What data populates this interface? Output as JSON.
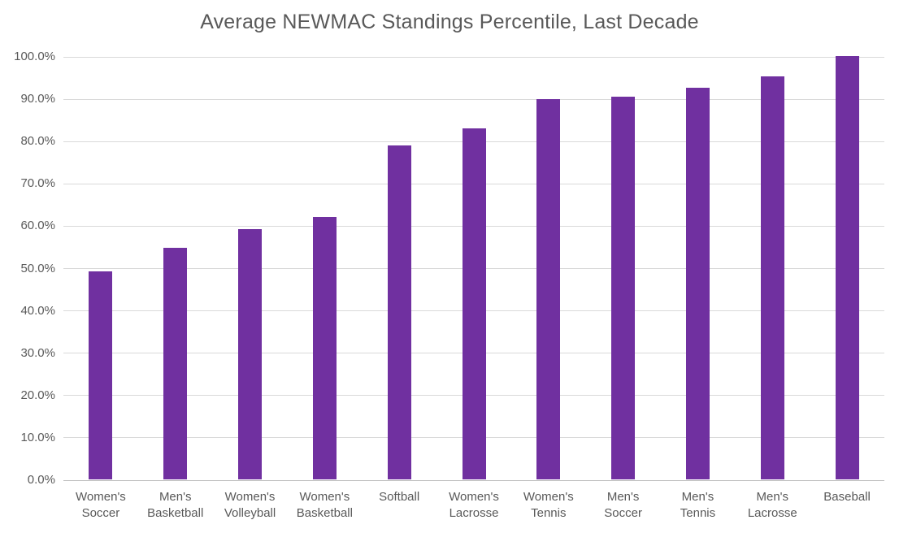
{
  "chart_data": {
    "type": "bar",
    "title": "Average NEWMAC Standings Percentile, Last Decade",
    "categories": [
      "Women's\nSoccer",
      "Men's\nBasketball",
      "Women's\nVolleyball",
      "Women's\nBasketball",
      "Softball",
      "Women's\nLacrosse",
      "Women's\nTennis",
      "Men's\nSoccer",
      "Men's\nTennis",
      "Men's\nLacrosse",
      "Baseball"
    ],
    "values": [
      49.1,
      54.7,
      59.1,
      62.0,
      78.9,
      83.0,
      89.8,
      90.4,
      92.5,
      95.2,
      100.0
    ],
    "xlabel": "",
    "ylabel": "",
    "ylim": [
      0,
      100
    ],
    "ytick_step": 10,
    "ytick_labels": [
      "0.0%",
      "10.0%",
      "20.0%",
      "30.0%",
      "40.0%",
      "50.0%",
      "60.0%",
      "70.0%",
      "80.0%",
      "90.0%",
      "100.0%"
    ],
    "grid": true,
    "legend": false,
    "colors": {
      "bar": "#7030A0",
      "gridline": "#D9D9D9",
      "axis_line": "#BFBFBF",
      "text": "#595959"
    }
  }
}
